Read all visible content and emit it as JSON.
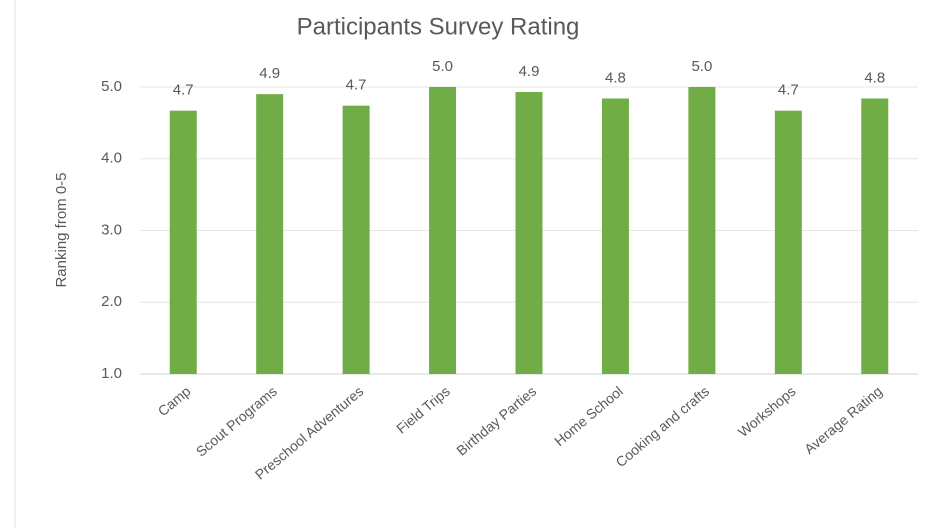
{
  "chart_data": {
    "type": "bar",
    "title": "Participants Survey Rating",
    "y_label": "Ranking from 0-5",
    "categories": [
      "Camp",
      "Scout Programs",
      "Preschool Adventures",
      "Field Trips",
      "Birthday Parties",
      "Home School",
      "Cooking and crafts",
      "Workshops",
      "Average Rating"
    ],
    "values": [
      4.67,
      4.9,
      4.74,
      5.0,
      4.93,
      4.84,
      5.0,
      4.67,
      4.84
    ],
    "value_labels": [
      "4.7",
      "4.9",
      "4.7",
      "5.0",
      "4.9",
      "4.8",
      "5.0",
      "4.7",
      "4.8"
    ],
    "color": "#70ad47",
    "ylim": [
      1,
      5
    ],
    "yticks": [
      {
        "value": 1,
        "label": "1.0"
      },
      {
        "value": 2,
        "label": "2.0"
      },
      {
        "value": 3,
        "label": "3.0"
      },
      {
        "value": 4,
        "label": "4.0"
      },
      {
        "value": 5,
        "label": "5.0"
      }
    ],
    "grid": true
  }
}
